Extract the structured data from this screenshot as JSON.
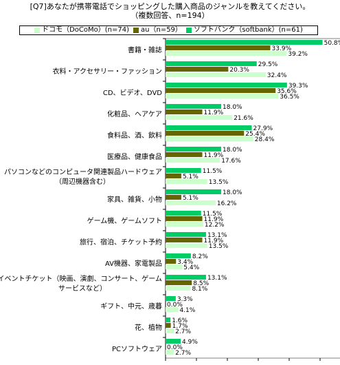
{
  "title": "[Q7]あなたが携帯電話でショッピングした購入商品のジャンルを教えてください。",
  "subtitle": "（複数回答、n=194）",
  "colors": {
    "docomo": "#ccffcc",
    "au": "#666600",
    "softbank": "#00cc66"
  },
  "chart_data": {
    "type": "bar",
    "orientation": "horizontal",
    "categories": [
      "書籍・雑誌",
      "衣料・アクセサリー・ファッション",
      "CD、ビデオ、DVD",
      "化粧品、ヘアケア",
      "食料品、酒、飲料",
      "医療品、健康食品",
      "パソコンなどのコンピュータ関連製品ハードウェア（周辺機器含む）",
      "家具、雑貨、小物",
      "ゲーム機、ゲームソフト",
      "旅行、宿泊、チケット予約",
      "AV機器、家電製品",
      "イベントチケット（映画、演劇、コンサート、ゲームサービスなど）",
      "ギフト、中元、歳暮",
      "花、植物",
      "PCソフトウェア"
    ],
    "category_lines": [
      [
        "書籍・雑誌"
      ],
      [
        "衣料・アクセサリー・ファッション"
      ],
      [
        "CD、ビデオ、DVD"
      ],
      [
        "化粧品、ヘアケア"
      ],
      [
        "食料品、酒、飲料"
      ],
      [
        "医療品、健康食品"
      ],
      [
        "パソコンなどのコンピュータ関連製品ハードウェア",
        "（周辺機器含む）"
      ],
      [
        "家具、雑貨、小物"
      ],
      [
        "ゲーム機、ゲームソフト"
      ],
      [
        "旅行、宿泊、チケット予約"
      ],
      [
        "AV機器、家電製品"
      ],
      [
        "イベントチケット（映画、演劇、コンサート、ゲーム",
        "サービスなど）"
      ],
      [
        "ギフト、中元、歳暮"
      ],
      [
        "花、植物"
      ],
      [
        "PCソフトウェア"
      ]
    ],
    "series": [
      {
        "name": "ドコモ（DoCoMo）(n=74)",
        "key": "docomo",
        "values": [
          39.2,
          32.4,
          36.5,
          21.6,
          28.4,
          17.6,
          13.5,
          16.2,
          12.2,
          13.5,
          5.4,
          8.1,
          4.1,
          2.7,
          2.7
        ]
      },
      {
        "name": "au（n=59）",
        "key": "au",
        "values": [
          33.9,
          20.3,
          35.6,
          11.9,
          25.4,
          11.9,
          5.1,
          5.1,
          11.9,
          11.9,
          3.4,
          8.5,
          0.0,
          1.7,
          0.0
        ]
      },
      {
        "name": "ソフトバンク（softbank）(n=61)",
        "key": "softbank",
        "values": [
          50.8,
          29.5,
          39.3,
          18.0,
          27.9,
          18.0,
          11.5,
          18.0,
          11.5,
          13.1,
          8.2,
          13.1,
          3.3,
          1.6,
          4.9
        ]
      }
    ],
    "draw_order": [
      "softbank",
      "au",
      "docomo"
    ],
    "xlim": [
      0,
      60
    ],
    "grid": false,
    "legend_position": "top"
  }
}
